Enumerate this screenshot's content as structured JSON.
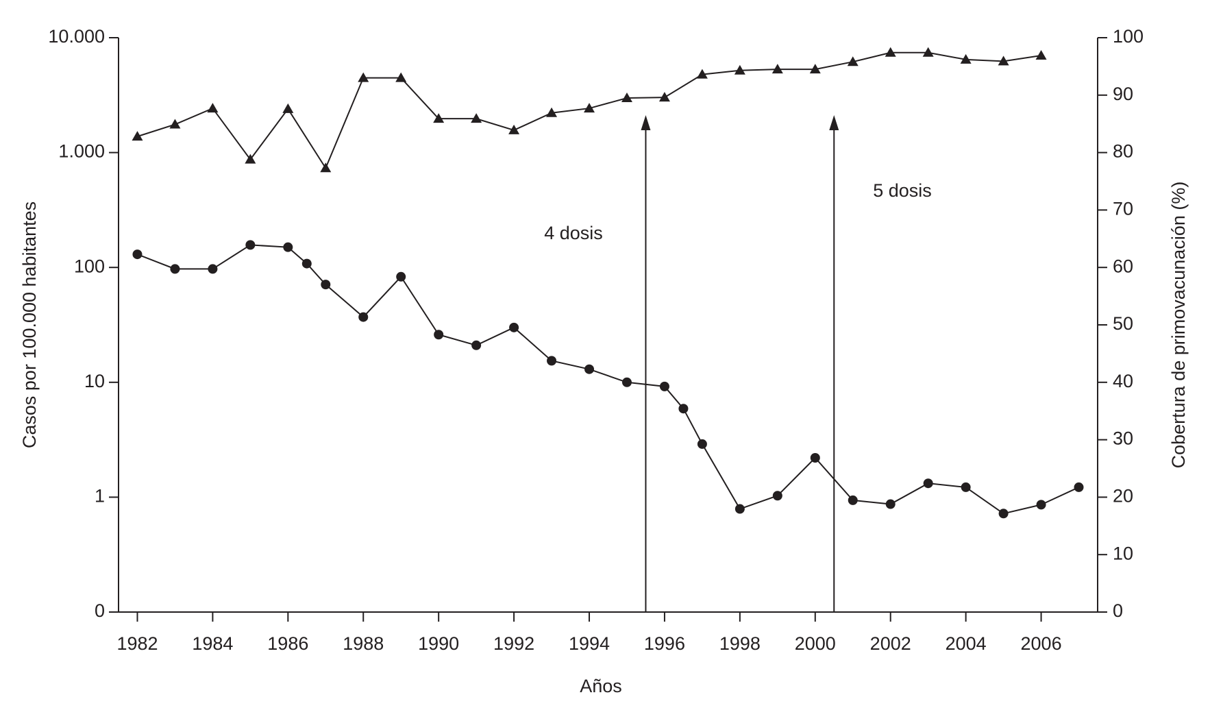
{
  "chart_data": {
    "type": "line",
    "y_label": "Casos por 100.000 habitantes",
    "y2_label": "Cobertura de primovacunación (%)",
    "x_label": "Años",
    "xlim": [
      1981.5,
      2007.5
    ],
    "xticks": [
      1982,
      1984,
      1986,
      1988,
      1990,
      1992,
      1994,
      1996,
      1998,
      2000,
      2002,
      2004,
      2006
    ],
    "ylim": [
      0.1,
      10000
    ],
    "yscale": "log",
    "yticks": [
      {
        "value": 0.1,
        "label": "0"
      },
      1,
      10,
      100,
      {
        "value": 1000,
        "label": "1.000"
      },
      {
        "value": 10000,
        "label": "10.000"
      }
    ],
    "y2lim": [
      0,
      100
    ],
    "y2ticks": [
      0,
      10,
      20,
      30,
      40,
      50,
      60,
      70,
      80,
      90,
      100
    ],
    "series": [
      {
        "color": "#231f20",
        "marker": "circle",
        "axis": "y",
        "x": [
          1982,
          1983,
          1984,
          1985,
          1986,
          1986.5,
          1987,
          1988,
          1989,
          1990,
          1991,
          1992,
          1993,
          1994,
          1995,
          1996,
          1996.5,
          1997,
          1998,
          1999,
          2000,
          2001,
          2002,
          2003,
          2004,
          2005,
          2006,
          2007
        ],
        "values": [
          130,
          97,
          97,
          157,
          150,
          108,
          71,
          37,
          83,
          26,
          21,
          30,
          15.4,
          13,
          10,
          9.2,
          5.9,
          2.9,
          0.79,
          1.03,
          2.2,
          0.94,
          0.87,
          1.32,
          1.22,
          0.72,
          0.86,
          1.22
        ]
      },
      {
        "color": "#231f20",
        "marker": "triangle",
        "axis": "y2",
        "x": [
          1982,
          1983,
          1984,
          1985,
          1986,
          1987,
          1988,
          1989,
          1990,
          1991,
          1992,
          1993,
          1994,
          1995,
          1996,
          1997,
          1998,
          1999,
          2000,
          2001,
          2002,
          2003,
          2004,
          2005,
          2006
        ],
        "values": [
          82.8,
          84.9,
          87.7,
          78.8,
          87.6,
          77.3,
          93.0,
          93.0,
          85.9,
          85.9,
          83.9,
          86.9,
          87.7,
          89.5,
          89.6,
          93.6,
          94.3,
          94.5,
          94.5,
          95.8,
          97.4,
          97.4,
          96.2,
          95.9,
          96.9
        ]
      }
    ],
    "annotations": [
      {
        "text": "4 dosis",
        "x": 1995.5
      },
      {
        "text": "5 dosis",
        "x": 2000.5
      }
    ]
  }
}
